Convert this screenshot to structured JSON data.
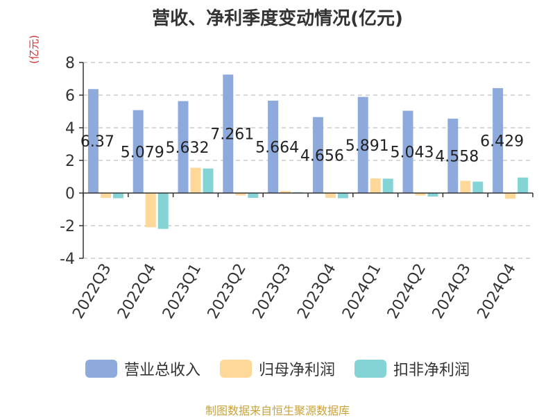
{
  "colors": {
    "revenue": "#8eaadc",
    "parent_net_profit": "#fdd899",
    "deducted_net_profit": "#84d4d6",
    "unit_label": "#d32f2f",
    "source_text": "#c8a23a"
  },
  "chart_data": {
    "type": "bar",
    "title": "营收、净利季度变动情况(亿元)",
    "ylabel": "(亿元)",
    "xlabel": "",
    "ylim": [
      -4,
      8
    ],
    "yticks": [
      -4,
      -2,
      0,
      2,
      4,
      6,
      8
    ],
    "grid": true,
    "legend_position": "bottom",
    "categories": [
      "2022Q3",
      "2022Q4",
      "2023Q1",
      "2023Q2",
      "2023Q3",
      "2023Q4",
      "2024Q1",
      "2024Q2",
      "2024Q3",
      "2024Q4"
    ],
    "series": [
      {
        "name": "营业总收入",
        "values": [
          6.37,
          5.079,
          5.632,
          7.261,
          5.664,
          4.656,
          5.891,
          5.043,
          4.558,
          6.429
        ],
        "labels": [
          "6.37",
          "5.079",
          "5.632",
          "7.261",
          "5.664",
          "4.656",
          "5.891",
          "5.043",
          "4.558",
          "6.429"
        ]
      },
      {
        "name": "归母净利润",
        "values": [
          -0.3,
          -2.1,
          1.55,
          -0.15,
          0.12,
          -0.3,
          0.9,
          -0.15,
          0.75,
          -0.35
        ]
      },
      {
        "name": "扣非净利润",
        "values": [
          -0.32,
          -2.2,
          1.5,
          -0.3,
          0.05,
          -0.32,
          0.88,
          -0.22,
          0.7,
          0.95
        ]
      }
    ]
  },
  "source": "制图数据来自恒生聚源数据库"
}
